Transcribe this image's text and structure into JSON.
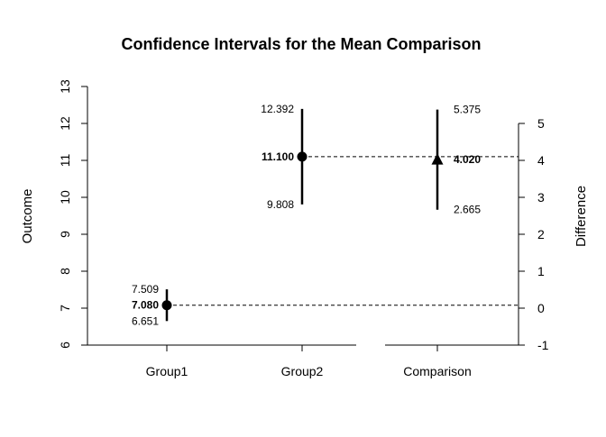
{
  "chart_data": {
    "type": "scatter",
    "title": "Confidence Intervals for the Mean Comparison",
    "xlabel": "",
    "ylabel": "Outcome",
    "y2label": "Difference",
    "categories": [
      "Group1",
      "Group2",
      "Comparison"
    ],
    "ylim": [
      6,
      13
    ],
    "y_ticks": [
      6,
      7,
      8,
      9,
      10,
      11,
      12,
      13
    ],
    "y2lim": [
      -1,
      6
    ],
    "y2_ticks": [
      -1,
      0,
      1,
      2,
      3,
      4,
      5
    ],
    "groups": [
      {
        "category": "Group1",
        "mean": 7.08,
        "lower": 6.651,
        "upper": 7.509,
        "mean_label": "7.080",
        "lower_label": "6.651",
        "upper_label": "7.509"
      },
      {
        "category": "Group2",
        "mean": 11.1,
        "lower": 9.808,
        "upper": 12.392,
        "mean_label": "11.100",
        "lower_label": "9.808",
        "upper_label": "12.392"
      }
    ],
    "comparison": {
      "category": "Comparison",
      "difference": 4.02,
      "lower": 2.665,
      "upper": 5.375,
      "diff_label": "4.020",
      "lower_label": "2.665",
      "upper_label": "5.375"
    },
    "grid": false,
    "legend": "none"
  }
}
